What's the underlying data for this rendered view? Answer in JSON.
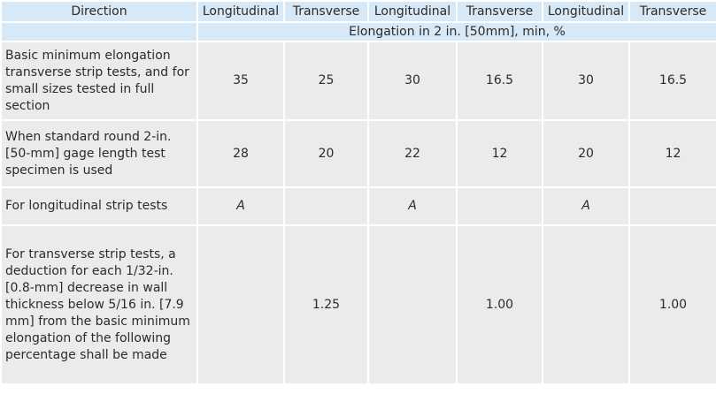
{
  "table": {
    "header": [
      "Direction",
      "Longitudinal",
      "Transverse",
      "Longitudinal",
      "Transverse",
      "Longitudinal",
      "Transverse"
    ],
    "subheader": "Elongation in 2 in. [50mm], min, %",
    "rows": [
      [
        "Basic minimum elongation transverse strip tests, and for small sizes tested in full section",
        "35",
        "25",
        "30",
        "16.5",
        "30",
        "16.5"
      ],
      [
        "When standard round 2-in. [50-mm] gage length test specimen is used",
        "28",
        "20",
        "22",
        "12",
        "20",
        "12"
      ],
      [
        "For longitudinal strip tests",
        "A",
        null,
        "A",
        null,
        "A",
        null
      ],
      [
        "For transverse strip tests, a deduction for each 1/32-in. [0.8-mm] decrease in wall thickness below 5/16 in. [7.9 mm] from the basic minimum elongation of the following percentage shall be made",
        null,
        "1.25",
        null,
        "1.00",
        null,
        "1.00"
      ]
    ]
  }
}
